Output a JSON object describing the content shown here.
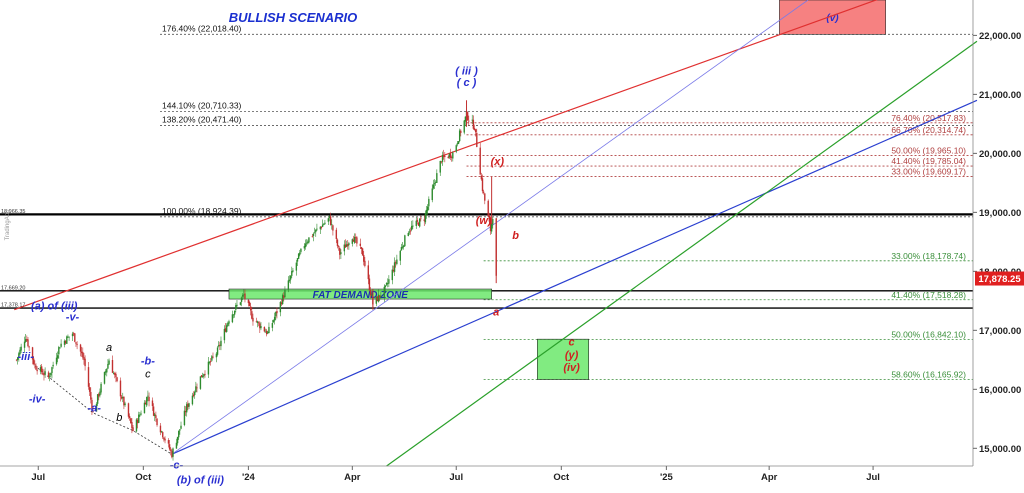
{
  "chart_data": {
    "type": "candlestick",
    "title": "BULLISH SCENARIO",
    "ylim": [
      14700,
      22600
    ],
    "x_ticks": [
      {
        "label": "Jul",
        "date": "2023-07-01"
      },
      {
        "label": "Oct",
        "date": "2023-10-01"
      },
      {
        "label": "'24",
        "date": "2024-01-01"
      },
      {
        "label": "Apr",
        "date": "2024-04-01"
      },
      {
        "label": "Jul",
        "date": "2024-07-01"
      },
      {
        "label": "Oct",
        "date": "2024-10-01"
      },
      {
        "label": "'25",
        "date": "2025-01-01"
      },
      {
        "label": "Apr",
        "date": "2025-04-01"
      },
      {
        "label": "Jul",
        "date": "2025-07-01"
      }
    ],
    "y_ticks": [
      "15,000.00",
      "16,000.00",
      "17,000.00",
      "18,000.00",
      "19,000.00",
      "20,000.00",
      "21,000.00",
      "22,000.00"
    ],
    "y_tick_values": [
      15000,
      16000,
      17000,
      18000,
      19000,
      20000,
      21000,
      22000
    ],
    "last_price": {
      "value": 17878.25,
      "label": "17,878.25"
    },
    "left_price_labels": [
      {
        "value": 18966.35,
        "text": "18,966.35"
      },
      {
        "value": 17669.2,
        "text": "17,669.20"
      },
      {
        "value": 17378.17,
        "text": "17,378.17"
      }
    ],
    "watermark": "TradingApp",
    "anchor_points": [
      {
        "date": "2023-06-12",
        "price": 16500
      },
      {
        "date": "2023-06-20",
        "price": 16900
      },
      {
        "date": "2023-06-28",
        "price": 16400
      },
      {
        "date": "2023-07-10",
        "price": 16200
      },
      {
        "date": "2023-07-20",
        "price": 16750
      },
      {
        "date": "2023-07-31",
        "price": 16950
      },
      {
        "date": "2023-08-10",
        "price": 16500
      },
      {
        "date": "2023-08-18",
        "price": 15600
      },
      {
        "date": "2023-09-01",
        "price": 16500
      },
      {
        "date": "2023-09-15",
        "price": 15700
      },
      {
        "date": "2023-09-22",
        "price": 15300
      },
      {
        "date": "2023-10-05",
        "price": 15900
      },
      {
        "date": "2023-10-12",
        "price": 15500
      },
      {
        "date": "2023-10-26",
        "price": 14900
      },
      {
        "date": "2023-11-08",
        "price": 15700
      },
      {
        "date": "2023-11-20",
        "price": 16200
      },
      {
        "date": "2023-12-05",
        "price": 16650
      },
      {
        "date": "2023-12-15",
        "price": 17200
      },
      {
        "date": "2023-12-28",
        "price": 17600
      },
      {
        "date": "2024-01-05",
        "price": 17200
      },
      {
        "date": "2024-01-18",
        "price": 16950
      },
      {
        "date": "2024-01-31",
        "price": 17550
      },
      {
        "date": "2024-02-12",
        "price": 18150
      },
      {
        "date": "2024-02-20",
        "price": 18500
      },
      {
        "date": "2024-03-01",
        "price": 18700
      },
      {
        "date": "2024-03-12",
        "price": 18900
      },
      {
        "date": "2024-03-21",
        "price": 18300
      },
      {
        "date": "2024-04-01",
        "price": 18600
      },
      {
        "date": "2024-04-10",
        "price": 18300
      },
      {
        "date": "2024-04-19",
        "price": 17450
      },
      {
        "date": "2024-04-30",
        "price": 17700
      },
      {
        "date": "2024-05-10",
        "price": 18200
      },
      {
        "date": "2024-05-20",
        "price": 18700
      },
      {
        "date": "2024-06-03",
        "price": 18900
      },
      {
        "date": "2024-06-18",
        "price": 19900
      },
      {
        "date": "2024-06-28",
        "price": 20000
      },
      {
        "date": "2024-07-10",
        "price": 20650
      },
      {
        "date": "2024-07-17",
        "price": 20450
      },
      {
        "date": "2024-07-24",
        "price": 19400
      },
      {
        "date": "2024-07-31",
        "price": 18700
      },
      {
        "date": "2024-08-02",
        "price": 18950
      },
      {
        "date": "2024-08-05",
        "price": 17878
      }
    ],
    "highs_lows": [
      {
        "date": "2024-07-10",
        "high": 20900,
        "low": 20450
      },
      {
        "date": "2024-08-01",
        "high": 19600,
        "low": 18800
      },
      {
        "date": "2024-08-05",
        "high": 18900,
        "low": 17800
      },
      {
        "date": "2024-04-19",
        "high": 17700,
        "low": 17350
      }
    ],
    "fib_levels": [
      {
        "price": 22018.4,
        "label": "176.40% (22,018.40)",
        "side": "left",
        "color": "#555555"
      },
      {
        "price": 20710.33,
        "label": "144.10% (20,710.33)",
        "side": "left",
        "color": "#555555"
      },
      {
        "price": 20471.4,
        "label": "138.20% (20,471.40)",
        "side": "left",
        "color": "#555555"
      },
      {
        "price": 18924.39,
        "label": "100.00% (18,924.39)",
        "side": "left",
        "color": "#555555"
      },
      {
        "price": 20517.83,
        "label": "76.40% (20,517.83)",
        "side": "right",
        "color": "#b04040"
      },
      {
        "price": 20314.74,
        "label": "66.70% (20,314.74)",
        "side": "right",
        "color": "#b04040"
      },
      {
        "price": 19965.1,
        "label": "50.00% (19,965.10)",
        "side": "right",
        "color": "#b04040"
      },
      {
        "price": 19785.04,
        "label": "41.40% (19,785.04)",
        "side": "right",
        "color": "#b04040"
      },
      {
        "price": 19609.17,
        "label": "33.00% (19,609.17)",
        "side": "right",
        "color": "#b04040"
      },
      {
        "price": 18178.74,
        "label": "33.00% (18,178.74)",
        "side": "right",
        "color": "#3a8f3a"
      },
      {
        "price": 17518.28,
        "label": "41.40% (17,518.28)",
        "side": "right",
        "color": "#3a8f3a"
      },
      {
        "price": 16842.1,
        "label": "50.00% (16,842.10)",
        "side": "right",
        "color": "#3a8f3a"
      },
      {
        "price": 16165.92,
        "label": "58.60% (16,165.92)",
        "side": "right",
        "color": "#3a8f3a"
      }
    ],
    "horizontal_lines": [
      {
        "price": 18966.35,
        "color": "#000000"
      },
      {
        "price": 17669.2,
        "color": "#000000"
      },
      {
        "price": 17378.17,
        "color": "#000000"
      }
    ],
    "trend_lines": [
      {
        "from": {
          "date": "2023-06-10",
          "price": 17350
        },
        "to": {
          "date": "2025-07-18",
          "price": 22700
        },
        "color": "#e03030"
      },
      {
        "from": {
          "date": "2023-10-26",
          "price": 14900
        },
        "to": {
          "date": "2025-09-30",
          "price": 20900
        },
        "color": "#2a3fd0"
      },
      {
        "from": {
          "date": "2023-10-26",
          "price": 14900
        },
        "to": {
          "date": "2025-05-05",
          "price": 22600
        },
        "color": "#7a7ae8"
      },
      {
        "from": {
          "date": "2024-05-01",
          "price": 14700
        },
        "to": {
          "date": "2025-09-30",
          "price": 21900
        },
        "color": "#2aa02a"
      }
    ],
    "zones": [
      {
        "label": "FAT DEMAND ZONE",
        "date_from": "2023-12-15",
        "date_to": "2024-08-01",
        "price_top": 17700,
        "price_bottom": 17530,
        "fill": "#6be86b",
        "text_color": "#1a2fb0"
      },
      {
        "label": "(v)",
        "date_from": "2025-04-10",
        "date_to": "2025-07-12",
        "price_top": 22600,
        "price_bottom": 22018.4,
        "fill": "#f46b6b",
        "text_color": "#2a2fd0"
      },
      {
        "label": "",
        "date_from": "2024-09-10",
        "date_to": "2024-10-25",
        "price_top": 16850,
        "price_bottom": 16165.92,
        "fill": "#6be86b",
        "text_color": "#d02020"
      }
    ],
    "annotations": [
      {
        "text": "-iii-",
        "date": "2023-06-20",
        "price": 16500,
        "color": "#2a2fd0",
        "size": 11
      },
      {
        "text": "-iv-",
        "date": "2023-06-30",
        "price": 15780,
        "color": "#2a2fd0",
        "size": 11
      },
      {
        "text": "(a) of (iii)",
        "date": "2023-07-15",
        "price": 17350,
        "color": "#2a2fd0",
        "size": 11
      },
      {
        "text": "-v-",
        "date": "2023-07-31",
        "price": 17170,
        "color": "#2a2fd0",
        "size": 11
      },
      {
        "text": "-a-",
        "date": "2023-08-19",
        "price": 15620,
        "color": "#2a2fd0",
        "size": 11
      },
      {
        "text": "a",
        "date": "2023-09-01",
        "price": 16650,
        "color": "#000000",
        "size": 11
      },
      {
        "text": "-b-",
        "date": "2023-10-05",
        "price": 16420,
        "color": "#2a2fd0",
        "size": 11
      },
      {
        "text": "c",
        "date": "2023-10-05",
        "price": 16200,
        "color": "#000000",
        "size": 11
      },
      {
        "text": "b",
        "date": "2023-09-10",
        "price": 15460,
        "color": "#000000",
        "size": 11
      },
      {
        "text": "-c-",
        "date": "2023-10-30",
        "price": 14660,
        "color": "#2a2fd0",
        "size": 11
      },
      {
        "text": "(b) of (iii)",
        "date": "2023-11-20",
        "price": 14400,
        "color": "#2a2fd0",
        "size": 11
      },
      {
        "text": "( iii )",
        "date": "2024-07-10",
        "price": 21340,
        "color": "#2a2fd0",
        "size": 11
      },
      {
        "text": "( c )",
        "date": "2024-07-10",
        "price": 21140,
        "color": "#2a2fd0",
        "size": 11
      },
      {
        "text": "(x)",
        "date": "2024-08-06",
        "price": 19800,
        "color": "#d02020",
        "size": 11
      },
      {
        "text": "(w)",
        "date": "2024-07-25",
        "price": 18800,
        "color": "#d02020",
        "size": 11
      },
      {
        "text": "b",
        "date": "2024-08-22",
        "price": 18550,
        "color": "#d02020",
        "size": 11
      },
      {
        "text": "a",
        "date": "2024-08-05",
        "price": 17250,
        "color": "#d02020",
        "size": 11
      },
      {
        "text": "c",
        "date": "2024-10-10",
        "price": 16740,
        "color": "#d02020",
        "size": 11
      },
      {
        "text": "(y)",
        "date": "2024-10-10",
        "price": 16520,
        "color": "#d02020",
        "size": 11
      },
      {
        "text": "(iv)",
        "date": "2024-10-10",
        "price": 16310,
        "color": "#d02020",
        "size": 11
      }
    ],
    "legend_placement": "none",
    "grid": false,
    "xlabel": "",
    "ylabel": ""
  },
  "colors": {
    "up_candle": "#2e8b2e",
    "down_candle": "#c23030",
    "axis_text": "#222222",
    "title": "#1a2fd0",
    "last_price_bg": "#e02020",
    "background": "#ffffff"
  }
}
